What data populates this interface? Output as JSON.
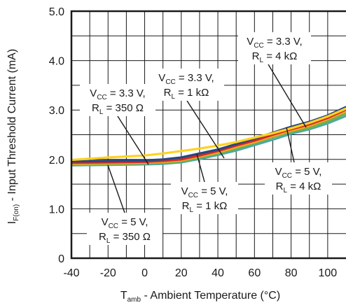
{
  "chart_data": {
    "type": "line",
    "x_axis": {
      "label_main": "T",
      "label_sub": "amb",
      "label_rest": " - Ambient Temperature (°C)",
      "ticks": [
        -40,
        -20,
        0,
        20,
        40,
        60,
        80,
        100
      ],
      "range": [
        -40,
        110
      ]
    },
    "y_axis": {
      "label_main": "I",
      "label_sub": "F(on)",
      "label_rest": " - Input Threshold Current (mA)",
      "ticks": [
        "0",
        "1.0",
        "2.0",
        "3.0",
        "4.0",
        "5.0"
      ],
      "range": [
        0,
        5
      ]
    },
    "grid": true,
    "series": [
      {
        "color": "#4aa9a6",
        "x": [
          -40,
          -20,
          0,
          10,
          20,
          30,
          40,
          50,
          60,
          70,
          80,
          90,
          100,
          110
        ],
        "y": [
          1.88,
          1.89,
          1.9,
          1.91,
          1.94,
          2.01,
          2.09,
          2.18,
          2.29,
          2.4,
          2.52,
          2.61,
          2.73,
          2.88
        ]
      },
      {
        "color": "#76b043",
        "x": [
          -40,
          -20,
          0,
          10,
          20,
          30,
          40,
          50,
          60,
          70,
          80,
          90,
          100,
          110
        ],
        "y": [
          1.89,
          1.9,
          1.92,
          1.93,
          1.96,
          2.04,
          2.12,
          2.22,
          2.33,
          2.45,
          2.56,
          2.64,
          2.77,
          2.93
        ]
      },
      {
        "color": "#f5a623",
        "x": [
          -40,
          -20,
          0,
          10,
          20,
          30,
          40,
          50,
          60,
          70,
          80,
          90,
          100,
          110
        ],
        "y": [
          1.91,
          1.92,
          1.93,
          1.95,
          1.98,
          2.06,
          2.14,
          2.25,
          2.35,
          2.47,
          2.58,
          2.68,
          2.82,
          2.98
        ]
      },
      {
        "color": "#d42a2a",
        "x": [
          -40,
          -20,
          0,
          10,
          20,
          30,
          40,
          50,
          60,
          70,
          80,
          90,
          100,
          110
        ],
        "y": [
          1.93,
          1.94,
          1.95,
          1.97,
          2.0,
          2.08,
          2.17,
          2.28,
          2.38,
          2.5,
          2.61,
          2.71,
          2.84,
          3.01
        ]
      },
      {
        "color": "#27487f",
        "x": [
          -40,
          -20,
          0,
          10,
          20,
          30,
          40,
          50,
          60,
          70,
          80,
          90,
          100,
          110
        ],
        "y": [
          1.96,
          1.97,
          1.98,
          2.0,
          2.04,
          2.12,
          2.2,
          2.31,
          2.42,
          2.54,
          2.66,
          2.76,
          2.89,
          3.06
        ]
      },
      {
        "color": "#ffd21f",
        "x": [
          -40,
          -20,
          0,
          10,
          20,
          30,
          40,
          50,
          60,
          70,
          80,
          90,
          100,
          110
        ],
        "y": [
          1.99,
          2.04,
          2.08,
          2.12,
          2.17,
          2.22,
          2.28,
          2.35,
          2.44,
          2.53,
          2.63,
          2.74,
          2.87,
          3.03
        ]
      }
    ],
    "annotations": [
      {
        "line1": "V",
        "sub1": "CC",
        "rest1": " = 3.3 V,",
        "line2": "R",
        "sub2": "L",
        "rest2": " = 4 kΩ"
      },
      {
        "line1": "V",
        "sub1": "CC",
        "rest1": " = 3.3 V,",
        "line2": "R",
        "sub2": "L",
        "rest2": " = 1 kΩ"
      },
      {
        "line1": "V",
        "sub1": "CC",
        "rest1": " = 3.3 V,",
        "line2": "R",
        "sub2": "L",
        "rest2": " = 350 Ω"
      },
      {
        "line1": "V",
        "sub1": "CC",
        "rest1": " = 5 V,",
        "line2": "R",
        "sub2": "L",
        "rest2": " = 4 kΩ"
      },
      {
        "line1": "V",
        "sub1": "CC",
        "rest1": " = 5 V,",
        "line2": "R",
        "sub2": "L",
        "rest2": " = 1 kΩ"
      },
      {
        "line1": "V",
        "sub1": "CC",
        "rest1": " = 5 V,",
        "line2": "R",
        "sub2": "L",
        "rest2": " = 350 Ω"
      }
    ]
  }
}
